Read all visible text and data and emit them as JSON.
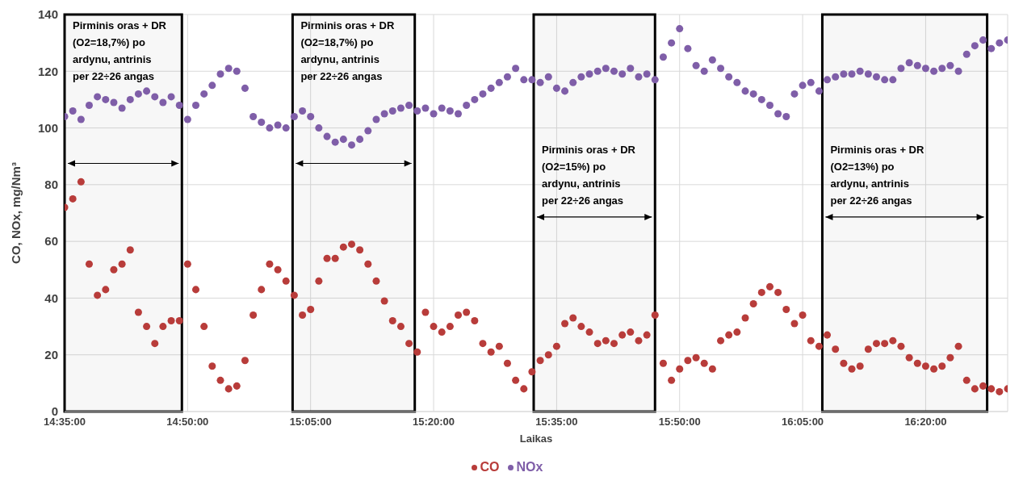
{
  "chart_data": {
    "type": "scatter",
    "xlabel": "Laikas",
    "ylabel": "CO, NOx, mg/Nm³",
    "x": [
      14.5833,
      14.6,
      14.6167,
      14.6333,
      14.65,
      14.6667,
      14.6833,
      14.7,
      14.7167,
      14.7333,
      14.75,
      14.7667,
      14.7833,
      14.8,
      14.8167,
      14.8333,
      14.85,
      14.8667,
      14.8833,
      14.9,
      14.9167,
      14.9333,
      14.95,
      14.9667,
      14.9833,
      15.0,
      15.0167,
      15.0333,
      15.05,
      15.0667,
      15.0833,
      15.1,
      15.1167,
      15.1333,
      15.15,
      15.1667,
      15.1833,
      15.2,
      15.2167,
      15.2333,
      15.25,
      15.2667,
      15.2833,
      15.3,
      15.3167,
      15.3333,
      15.35,
      15.3667,
      15.3833,
      15.4,
      15.4167,
      15.4333,
      15.45,
      15.4667,
      15.4833,
      15.5,
      15.5167,
      15.5333,
      15.55,
      15.5667,
      15.5833,
      15.6,
      15.6167,
      15.6333,
      15.65,
      15.6667,
      15.6833,
      15.7,
      15.7167,
      15.7333,
      15.75,
      15.7667,
      15.7833,
      15.8,
      15.8167,
      15.8333,
      15.85,
      15.8667,
      15.8833,
      15.9,
      15.9167,
      15.9333,
      15.95,
      15.9667,
      15.9833,
      16.0,
      16.0167,
      16.0333,
      16.05,
      16.0667,
      16.0833,
      16.1,
      16.1167,
      16.1333,
      16.15,
      16.1667,
      16.1833,
      16.2,
      16.2167,
      16.2333,
      16.25,
      16.2667,
      16.2833,
      16.3,
      16.3167,
      16.3333,
      16.35,
      16.3667,
      16.3833,
      16.4,
      16.4167,
      16.4333,
      16.45,
      16.4667,
      16.4833,
      16.5
    ],
    "series": [
      {
        "name": "CO",
        "color": "#b83c3a",
        "values": [
          72,
          75,
          81,
          52,
          41,
          43,
          50,
          52,
          57,
          35,
          30,
          24,
          30,
          32,
          32,
          52,
          43,
          30,
          16,
          11,
          8,
          9,
          18,
          34,
          43,
          52,
          50,
          46,
          41,
          34,
          36,
          46,
          54,
          54,
          58,
          59,
          57,
          52,
          46,
          39,
          32,
          30,
          24,
          21,
          35,
          30,
          28,
          30,
          34,
          35,
          32,
          24,
          21,
          23,
          17,
          11,
          8,
          14,
          18,
          20,
          23,
          31,
          33,
          30,
          28,
          24,
          25,
          24,
          27,
          28,
          25,
          27,
          34,
          17,
          11,
          15,
          18,
          19,
          17,
          15,
          25,
          27,
          28,
          33,
          38,
          42,
          44,
          42,
          36,
          31,
          34,
          25,
          23,
          27,
          22,
          17,
          15,
          16,
          22,
          24,
          24,
          25,
          23,
          19,
          17,
          16,
          15,
          16,
          19,
          23,
          11,
          8,
          9,
          8,
          7,
          8
        ]
      },
      {
        "name": "NOx",
        "color": "#7f5ea8",
        "values": [
          104,
          106,
          103,
          108,
          111,
          110,
          109,
          107,
          110,
          112,
          113,
          111,
          109,
          111,
          108,
          103,
          108,
          112,
          115,
          119,
          121,
          120,
          114,
          104,
          102,
          100,
          101,
          100,
          104,
          106,
          104,
          100,
          97,
          95,
          96,
          94,
          96,
          99,
          103,
          105,
          106,
          107,
          108,
          106,
          107,
          105,
          107,
          106,
          105,
          108,
          110,
          112,
          114,
          116,
          118,
          121,
          117,
          117,
          116,
          118,
          114,
          113,
          116,
          118,
          119,
          120,
          121,
          120,
          119,
          121,
          118,
          119,
          117,
          125,
          130,
          135,
          128,
          122,
          120,
          124,
          121,
          118,
          116,
          113,
          112,
          110,
          108,
          105,
          104,
          112,
          115,
          116,
          113,
          117,
          118,
          119,
          119,
          120,
          119,
          118,
          117,
          117,
          121,
          123,
          122,
          121,
          120,
          121,
          122,
          120,
          126,
          129,
          131,
          128,
          130,
          131
        ]
      }
    ],
    "xlim": [
      14.5833,
      16.5
    ],
    "xticks": [
      {
        "value": 14.5833,
        "label": "14:35:00"
      },
      {
        "value": 14.8333,
        "label": "14:50:00"
      },
      {
        "value": 15.0833,
        "label": "15:05:00"
      },
      {
        "value": 15.3333,
        "label": "15:20:00"
      },
      {
        "value": 15.5833,
        "label": "15:35:00"
      },
      {
        "value": 15.8333,
        "label": "15:50:00"
      },
      {
        "value": 16.0833,
        "label": "16:05:00"
      },
      {
        "value": 16.3333,
        "label": "16:20:00"
      }
    ],
    "ylim": [
      0,
      140
    ],
    "yticks": [
      0,
      20,
      40,
      60,
      80,
      100,
      120,
      140
    ],
    "grid": true,
    "legend": "bottom",
    "marker": "circle",
    "bands": [
      {
        "axis": "x",
        "from": 14.5833,
        "to": 14.8217,
        "label": "Pirminis oras + DR (O2=18,7%) po ardynu, antrinis per 22÷26 angas",
        "color": "#000000"
      },
      {
        "axis": "x",
        "from": 15.0467,
        "to": 15.295,
        "label": "Pirminis oras + DR (O2=18,7%) po ardynu, antrinis per 22÷26 angas",
        "color": "#000000"
      },
      {
        "axis": "x",
        "from": 15.5367,
        "to": 15.7833,
        "label": "Pirminis oras + DR (O2=15%) po ardynu, antrinis per 22÷26 angas",
        "color": "#000000"
      },
      {
        "axis": "x",
        "from": 16.1233,
        "to": 16.4583,
        "label": "Pirminis oras + DR (O2=13%) po ardynu, antrinis per 22÷26 angas",
        "color": "#000000"
      }
    ]
  }
}
